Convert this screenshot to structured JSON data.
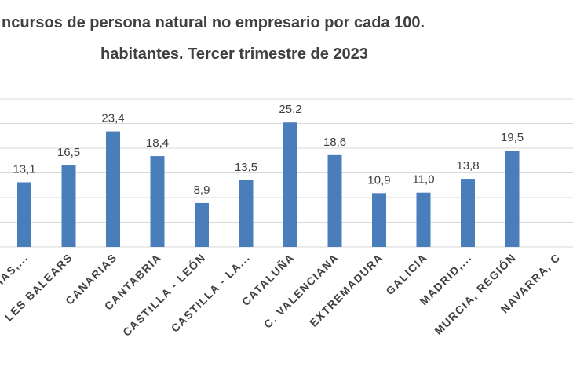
{
  "chart_data": {
    "type": "bar",
    "title_line_1": "ncursos de persona natural no empresario por cada 100.",
    "title_line_2": "habitantes.  Tercer trimestre de 2023",
    "xlabel": "",
    "ylabel": "",
    "ylim": [
      0,
      30
    ],
    "grid": true,
    "colors": {
      "bar": "#4a7ebb",
      "grid": "#d9d9d9",
      "text": "#404040"
    },
    "categories": [
      "IAS,...",
      "LES BALEARS",
      "CANARIAS",
      "CANTABRIA",
      "CASTILLA - LEÓN",
      "CASTILLA - LA...",
      "CATALUÑA",
      "C. VALENCIANA",
      "EXTREMADURA",
      "GALICIA",
      "MADRID,...",
      "MURCIA, REGIÓN",
      "NAVARRA, C"
    ],
    "values": [
      13.1,
      16.5,
      23.4,
      18.4,
      8.9,
      13.5,
      25.2,
      18.6,
      10.9,
      11.0,
      13.8,
      19.5,
      null
    ],
    "value_labels": [
      "13,1",
      "16,5",
      "23,4",
      "18,4",
      "8,9",
      "13,5",
      "25,2",
      "18,6",
      "10,9",
      "11,0",
      "13,8",
      "19,5",
      ""
    ]
  }
}
